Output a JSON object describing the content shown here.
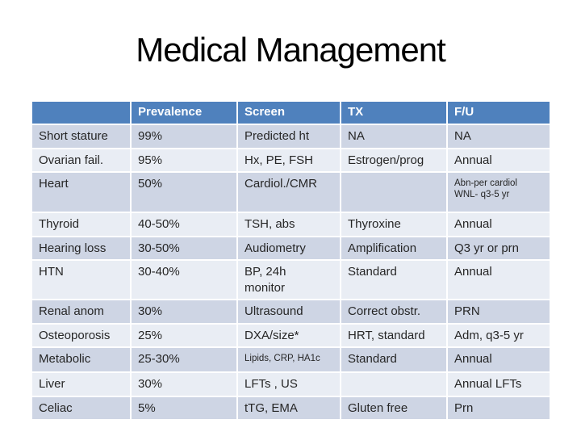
{
  "slide": {
    "title": "Medical Management"
  },
  "table": {
    "columns": [
      "",
      "Prevalence",
      "Screen",
      "TX",
      "F/U"
    ],
    "rows": [
      [
        "Short stature",
        "99%",
        "Predicted ht",
        "NA",
        "NA"
      ],
      [
        "Ovarian fail.",
        "95%",
        "Hx, PE, FSH",
        "Estrogen/prog",
        "Annual"
      ],
      [
        "Heart",
        "50%",
        "Cardiol./CMR",
        "",
        "Abn-per cardiol\nWNL- q3-5 yr"
      ],
      [
        "Thyroid",
        "40-50%",
        "TSH, abs",
        "Thyroxine",
        "Annual"
      ],
      [
        "Hearing loss",
        "30-50%",
        "Audiometry",
        "Amplification",
        "Q3 yr or prn"
      ],
      [
        "HTN",
        "30-40%",
        "BP, 24h\nmonitor",
        "Standard",
        "Annual"
      ],
      [
        "Renal anom",
        "30%",
        "Ultrasound",
        "Correct obstr.",
        "PRN"
      ],
      [
        "Osteoporosis",
        "25%",
        "DXA/size*",
        "HRT, standard",
        "Adm, q3-5 yr"
      ],
      [
        "Metabolic",
        "25-30%",
        "Lipids, CRP, HA1c",
        "Standard",
        "Annual"
      ],
      [
        "Liver",
        "30%",
        "LFTs , US",
        "",
        "Annual LFTs"
      ],
      [
        "Celiac",
        "5%",
        "tTG, EMA",
        "Gluten free",
        "Prn"
      ]
    ]
  },
  "colors": {
    "header_bg": "#4f81bd",
    "header_text": "#ffffff",
    "band_odd": "#ced5e4",
    "band_even": "#e9edf4",
    "body_text": "#262626",
    "title_text": "#000000"
  }
}
